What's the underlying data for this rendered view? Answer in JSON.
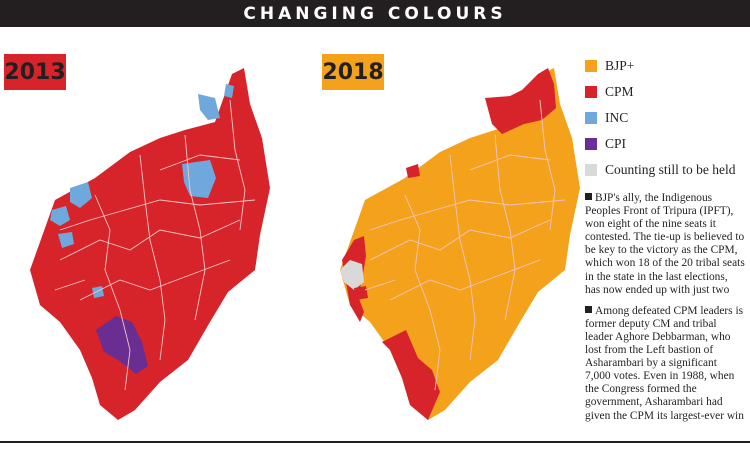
{
  "title": "CHANGING COLOURS",
  "maps": [
    {
      "year": "2013",
      "badge_color": "#d6242a"
    },
    {
      "year": "2018",
      "badge_color": "#f4a11c"
    }
  ],
  "colors": {
    "bjp": "#f4a11c",
    "cpm": "#d6242a",
    "inc": "#6fa8dc",
    "cpi": "#6a2d91",
    "counting": "#d9d9d9",
    "boundary": "#f3c6c6"
  },
  "legend": [
    {
      "label": "BJP+",
      "color": "#f4a11c"
    },
    {
      "label": "CPM",
      "color": "#d6242a"
    },
    {
      "label": "INC",
      "color": "#6fa8dc"
    },
    {
      "label": "CPI",
      "color": "#6a2d91"
    },
    {
      "label": "Counting still to be held",
      "color": "#d9d9d9"
    }
  ],
  "notes": [
    "BJP's ally, the Indigenous Peoples Front of Tripura (IPFT), won eight of the nine seats it contested. The tie-up is believed to be key to the victory as the CPM, which won 18 of the 20 tribal seats in the state in the last elections, has now ended up with just two",
    "Among defeated CPM leaders is former deputy CM and tribal leader Aghore Debbarman, who lost from the Left bastion of Asharambari by a significant 7,000 votes. Even in 1988, when the Congress formed the government, Asharambari had given the CPM its largest-ever win"
  ]
}
